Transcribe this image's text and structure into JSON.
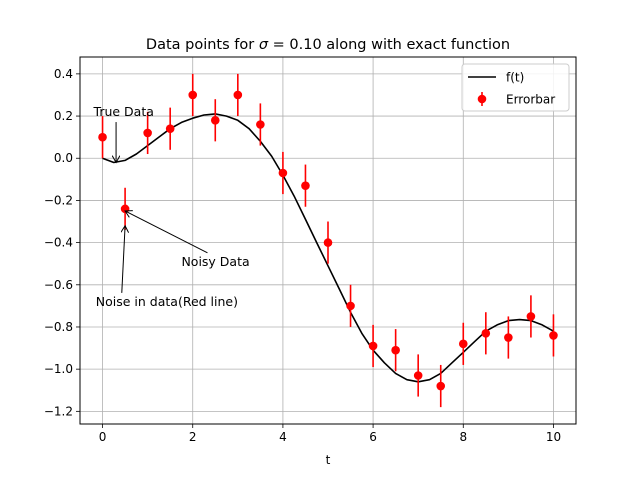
{
  "chart_data": {
    "type": "scatter",
    "title_prefix": "Data points for ",
    "title_sigma": "σ",
    "title_suffix": " = 0.10 along with exact function",
    "xlabel": "t",
    "ylabel": "",
    "xlim": [
      -0.5,
      10.5
    ],
    "ylim": [
      -1.26,
      0.48
    ],
    "grid": true,
    "legend_position": "top-right",
    "x_ticks": [
      0,
      2,
      4,
      6,
      8,
      10
    ],
    "x_tick_labels": [
      "0",
      "2",
      "4",
      "6",
      "8",
      "10"
    ],
    "y_ticks": [
      0.4,
      0.2,
      0.0,
      -0.2,
      -0.4,
      -0.6,
      -0.8,
      -1.0,
      -1.2
    ],
    "y_tick_labels": [
      "0.4",
      "0.2",
      "0.0",
      "−0.2",
      "−0.4",
      "−0.6",
      "−0.8",
      "−1.0",
      "−1.2"
    ],
    "series": [
      {
        "name": "f(t)",
        "kind": "line",
        "color": "#000000",
        "x": [
          0,
          0.25,
          0.5,
          0.75,
          1.0,
          1.25,
          1.5,
          1.75,
          2.0,
          2.25,
          2.5,
          2.75,
          3.0,
          3.25,
          3.5,
          3.75,
          4.0,
          4.25,
          4.5,
          4.75,
          5.0,
          5.25,
          5.5,
          5.75,
          6.0,
          6.25,
          6.5,
          6.75,
          7.0,
          7.25,
          7.5,
          7.75,
          8.0,
          8.25,
          8.5,
          8.75,
          9.0,
          9.25,
          9.5,
          9.75,
          10.0
        ],
        "y": [
          0.0,
          -0.02,
          -0.01,
          0.02,
          0.06,
          0.1,
          0.14,
          0.17,
          0.19,
          0.205,
          0.21,
          0.2,
          0.18,
          0.14,
          0.08,
          0.01,
          -0.08,
          -0.18,
          -0.29,
          -0.4,
          -0.51,
          -0.62,
          -0.73,
          -0.83,
          -0.91,
          -0.97,
          -1.02,
          -1.05,
          -1.06,
          -1.05,
          -1.02,
          -0.97,
          -0.92,
          -0.87,
          -0.82,
          -0.79,
          -0.77,
          -0.765,
          -0.77,
          -0.79,
          -0.82
        ]
      },
      {
        "name": "Errorbar",
        "kind": "errorbar",
        "color": "#ff0000",
        "error": 0.1,
        "x": [
          0,
          0.5,
          1.0,
          1.5,
          2.0,
          2.5,
          3.0,
          3.5,
          4.0,
          4.5,
          5.0,
          5.5,
          6.0,
          6.5,
          7.0,
          7.5,
          8.0,
          8.5,
          9.0,
          9.5,
          10.0
        ],
        "y": [
          0.1,
          -0.24,
          0.12,
          0.14,
          0.3,
          0.18,
          0.3,
          0.16,
          -0.07,
          -0.13,
          -0.4,
          -0.7,
          -0.89,
          -0.91,
          -1.03,
          -1.08,
          -0.88,
          -0.83,
          -0.85,
          -0.75,
          -0.84
        ]
      }
    ],
    "annotations": [
      {
        "name": "annotation-true-data",
        "text": "True Data",
        "text_x": -0.2,
        "text_y": 0.2,
        "arrow_to_x": 0.3,
        "arrow_to_y": -0.02
      },
      {
        "name": "annotation-noisy-data",
        "text": "Noisy Data",
        "text_x": 1.75,
        "text_y": -0.51,
        "arrow_to_x": 0.5,
        "arrow_to_y": -0.25
      },
      {
        "name": "annotation-noise-in-data",
        "text": "Noise in data(Red line)",
        "text_x": -0.15,
        "text_y": -0.7,
        "arrow_to_x": 0.5,
        "arrow_to_y": -0.32
      }
    ]
  }
}
